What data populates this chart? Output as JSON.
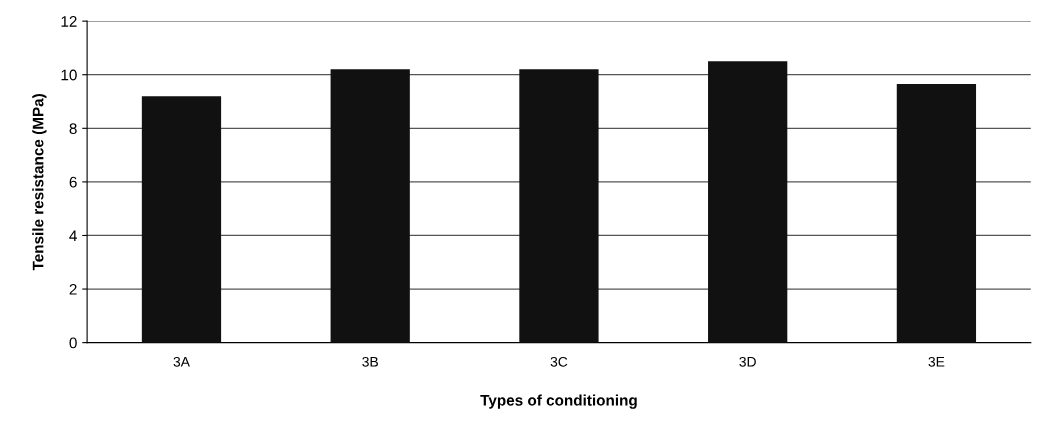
{
  "chart_data": {
    "type": "bar",
    "xlabel": "Types of conditioning",
    "ylabel": "Tensile resistance (MPa)",
    "categories": [
      "3A",
      "3B",
      "3C",
      "3D",
      "3E"
    ],
    "values": [
      9.2,
      10.2,
      10.2,
      10.5,
      9.65
    ],
    "color": "#111111",
    "ylim": [
      0,
      12
    ],
    "yticks": [
      0,
      2,
      4,
      6,
      8,
      10,
      12
    ],
    "grid": "y",
    "legend": false
  }
}
